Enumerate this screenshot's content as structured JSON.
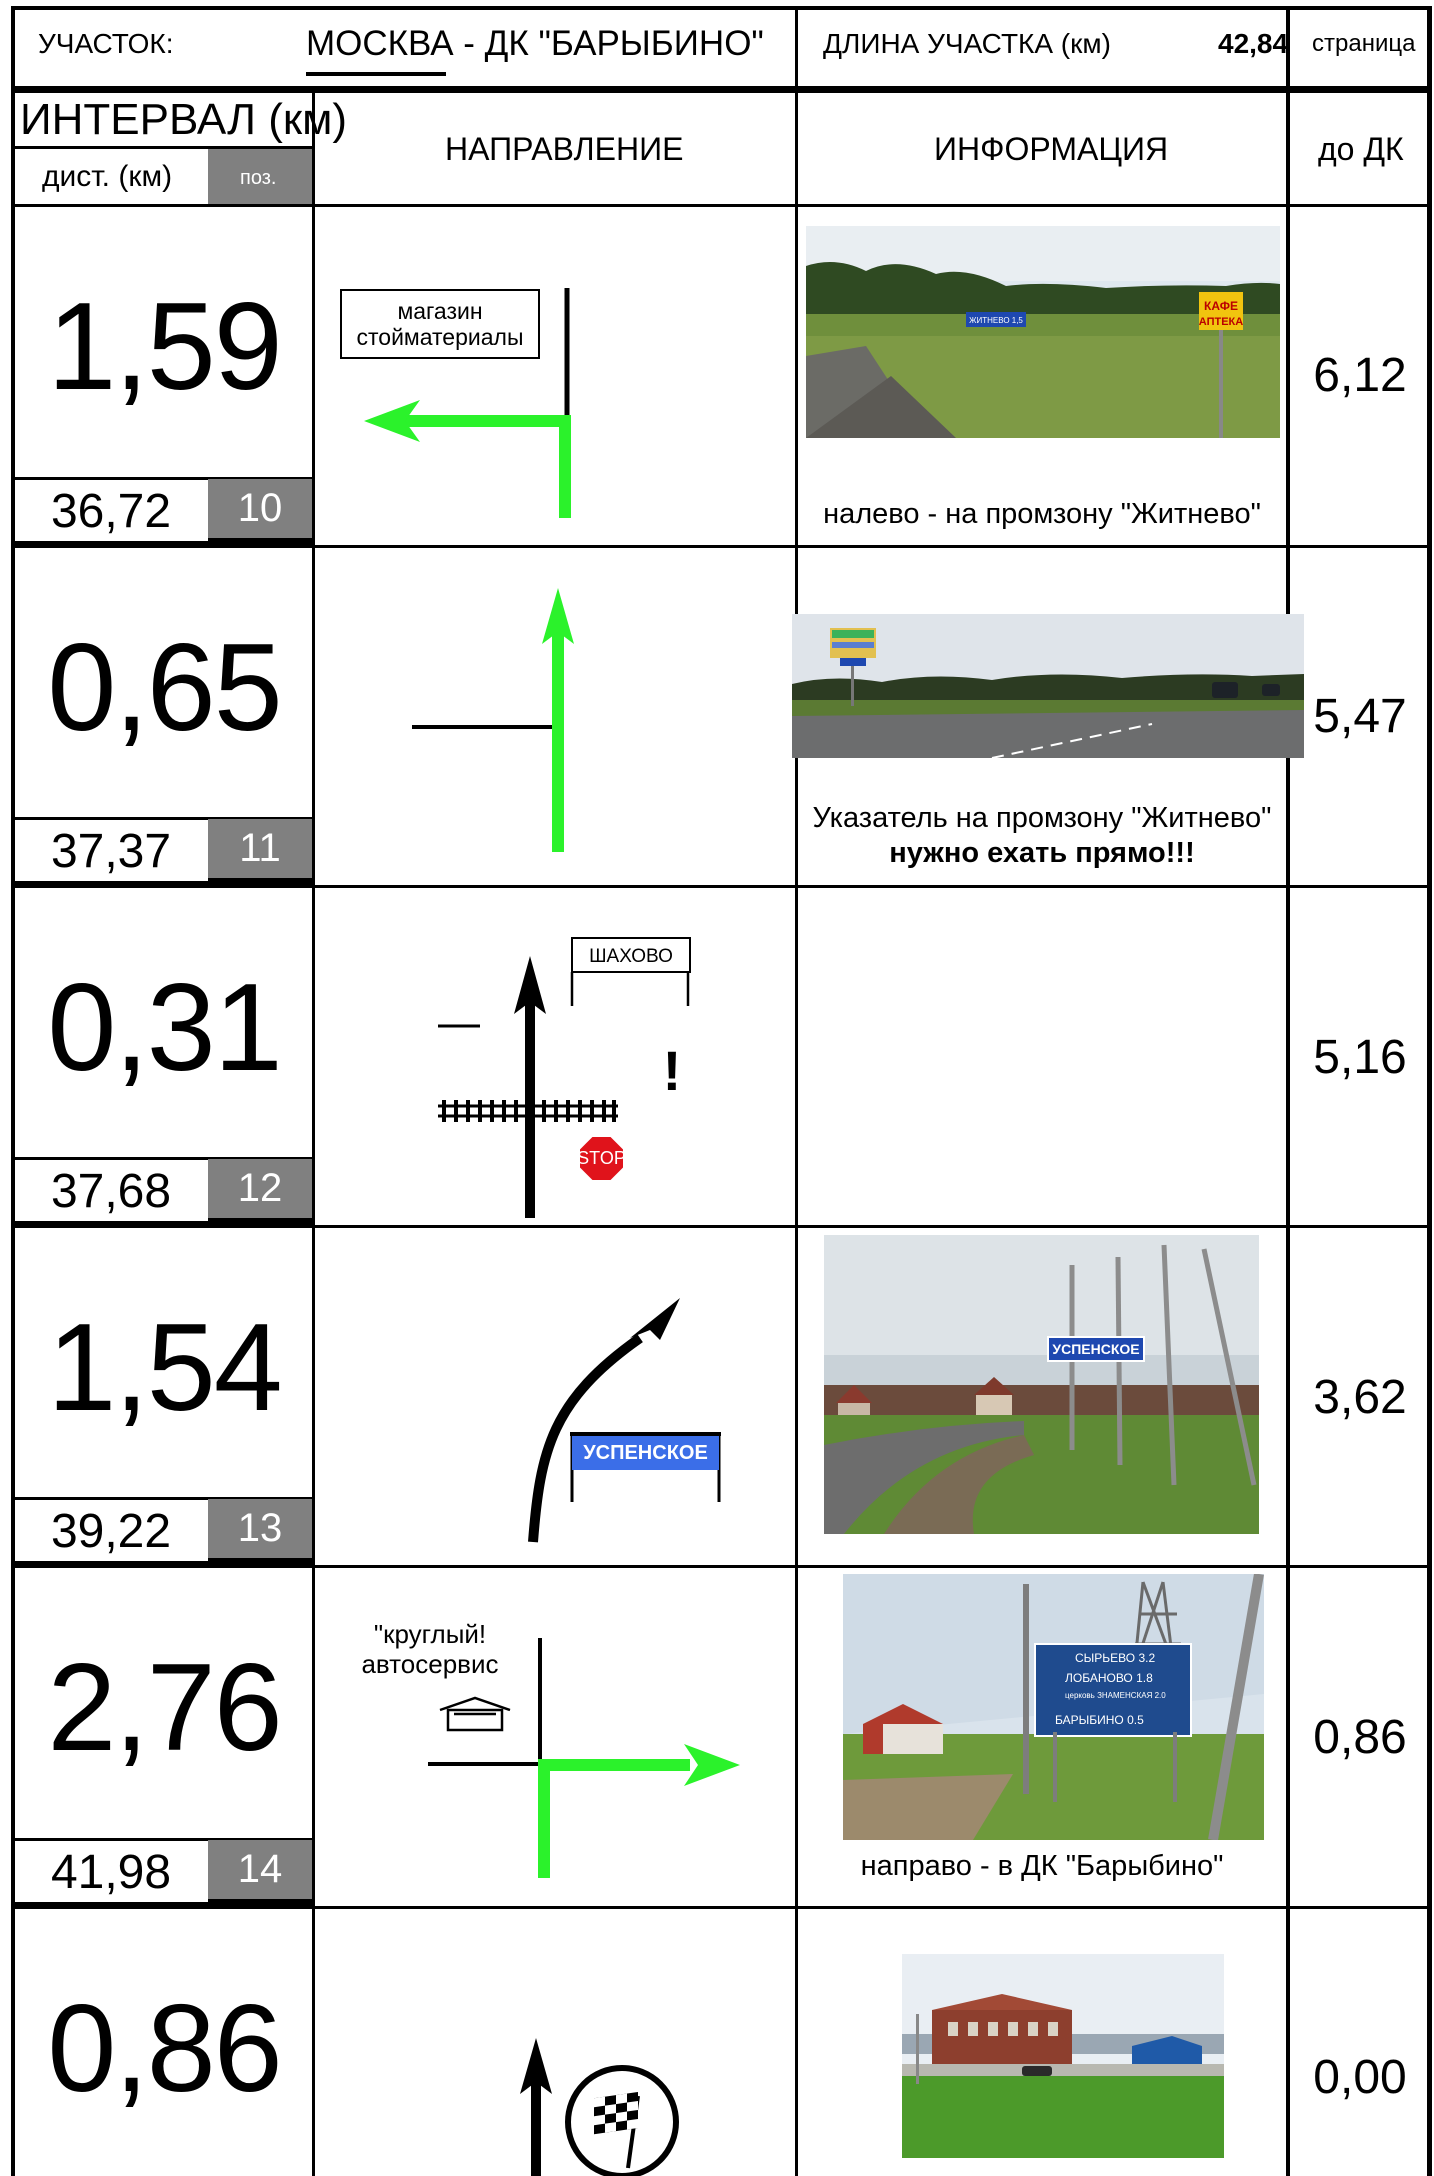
{
  "header": {
    "section_label": "УЧАСТОК:",
    "section_name": "МОСКВА - ДК  \"БАРЫБИНО\"",
    "length_label": "ДЛИНА УЧАСТКА (км)",
    "length_value": "42,84",
    "page_label": "страница"
  },
  "columns": {
    "interval": "ИНТЕРВАЛ (км)",
    "dist": "дист. (км)",
    "pos": "поз.",
    "direction": "НАПРАВЛЕНИЕ",
    "info": "ИНФОРМАЦИЯ",
    "to_dk": "до ДК"
  },
  "rows": [
    {
      "interval": "1,59",
      "dist": "36,72",
      "pos": "10",
      "to_dk": "6,12",
      "sign_text": "магазин\nстойматериалы",
      "caption": "налево - на промзону \"Житнево\"",
      "photo_signs": {
        "dir": "ЖИТНЕВО 1,5",
        "cafe": "КАФЕ",
        "pharmacy": "АПТЕКА"
      }
    },
    {
      "interval": "0,65",
      "dist": "37,37",
      "pos": "11",
      "to_dk": "5,47",
      "caption": "Указатель на промзону \"Житнево\"",
      "caption_bold": "нужно ехать прямо!!!"
    },
    {
      "interval": "0,31",
      "dist": "37,68",
      "pos": "12",
      "to_dk": "5,16",
      "sign_text": "ШАХОВО",
      "stop_text": "STOP",
      "warning": "!"
    },
    {
      "interval": "1,54",
      "dist": "39,22",
      "pos": "13",
      "to_dk": "3,62",
      "sign_text": "УСПЕНСКОЕ",
      "photo_sign": "УСПЕНСКОЕ"
    },
    {
      "interval": "2,76",
      "dist": "41,98",
      "pos": "14",
      "to_dk": "0,86",
      "sign_text": "\"круглый!\nавтосервис",
      "caption": "направо - в ДК \"Барыбино\"",
      "photo_sign_lines": [
        "СЫРЬЕВО 3.2",
        "ЛОБАНОВО 1.8",
        "церковь ЗНАМЕНСКАЯ 2.0",
        "БАРЫБИНО 0.5"
      ]
    },
    {
      "interval": "0,86",
      "to_dk": "0,00"
    }
  ],
  "colors": {
    "arrow_green": "#2bf22b",
    "grey_box": "#808080",
    "sign_blue": "#3b6ee8",
    "stop_red": "#e0131b"
  }
}
